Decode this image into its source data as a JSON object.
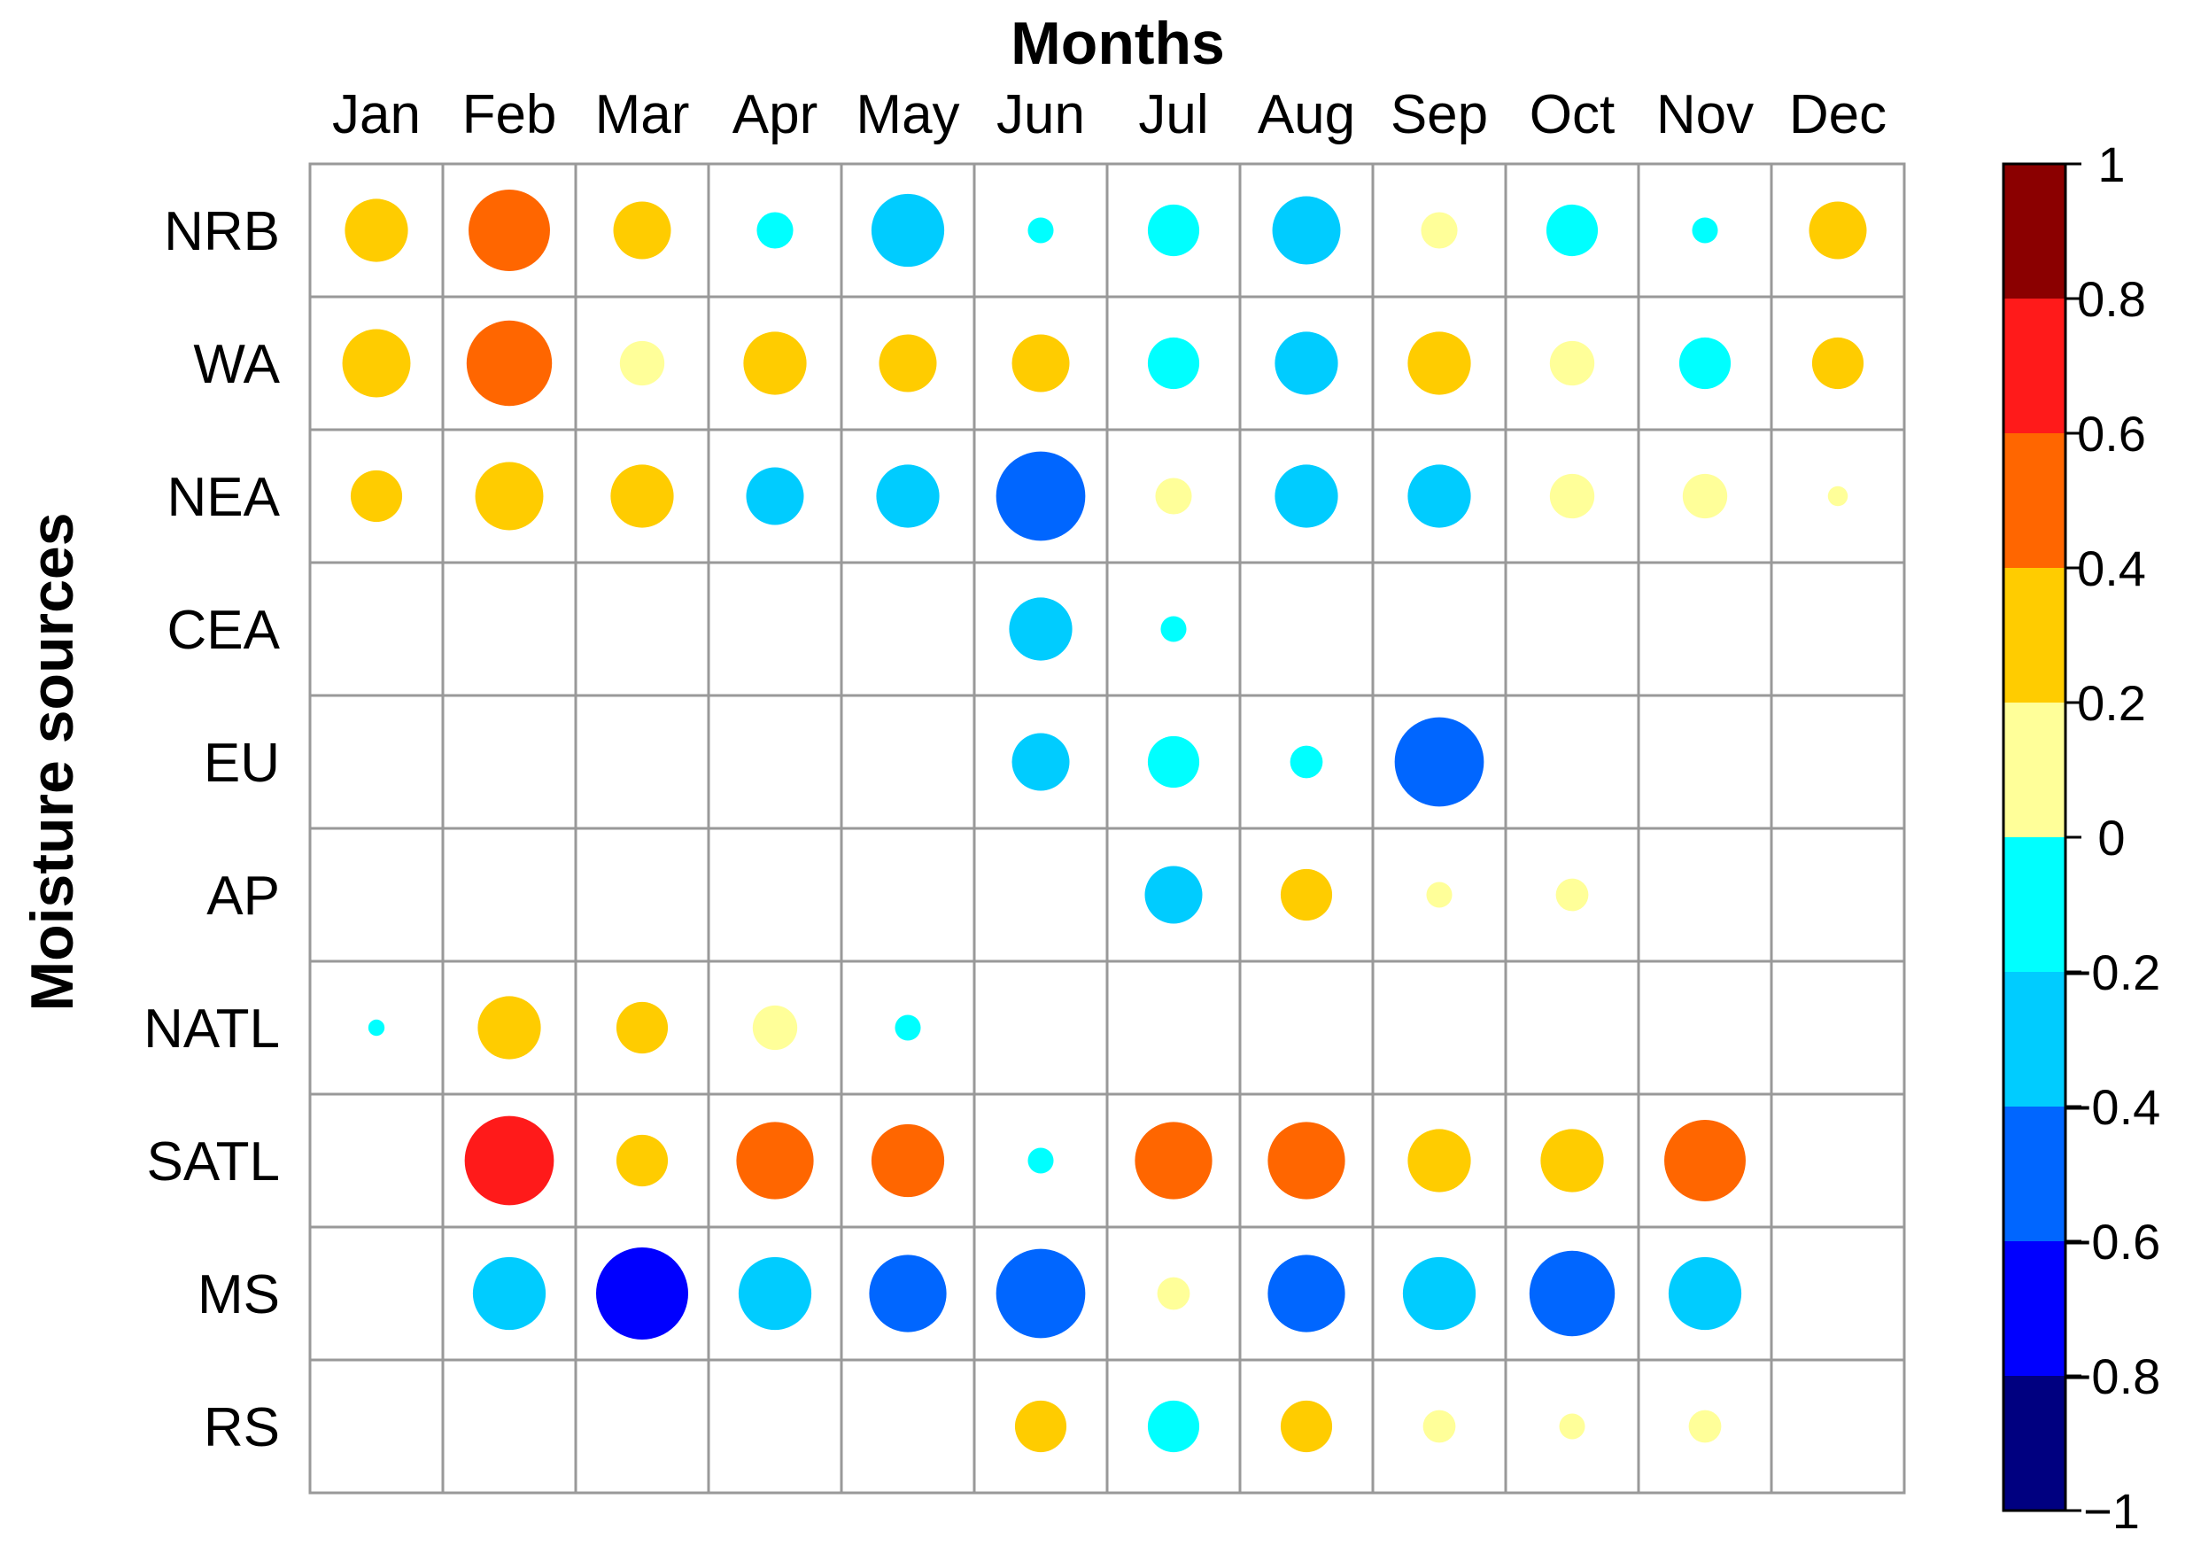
{
  "chart_data": {
    "type": "heatmap",
    "title": "Months",
    "ylabel": "Moisture sources",
    "x_categories": [
      "Jan",
      "Feb",
      "Mar",
      "Apr",
      "May",
      "Jun",
      "Jul",
      "Aug",
      "Sep",
      "Oct",
      "Nov",
      "Dec"
    ],
    "y_categories": [
      "NRB",
      "WA",
      "NEA",
      "CEA",
      "EU",
      "AP",
      "NATL",
      "SATL",
      "MS",
      "RS"
    ],
    "value_range": [
      -1,
      1
    ],
    "encoding": "correlation value shown by circle color and circle size (absolute value); empty cells have no data",
    "values": [
      [
        0.3,
        0.5,
        0.25,
        -0.1,
        -0.4,
        -0.05,
        -0.2,
        -0.35,
        0.1,
        -0.2,
        -0.05,
        0.25
      ],
      [
        0.35,
        0.55,
        0.15,
        0.3,
        0.25,
        0.25,
        -0.2,
        -0.3,
        0.3,
        0.15,
        -0.2,
        0.2
      ],
      [
        0.2,
        0.35,
        0.3,
        -0.25,
        -0.3,
        -0.6,
        0.1,
        -0.3,
        -0.3,
        0.15,
        0.15,
        0.03
      ],
      [
        null,
        null,
        null,
        null,
        null,
        -0.3,
        -0.05,
        null,
        null,
        null,
        null,
        null
      ],
      [
        null,
        null,
        null,
        null,
        null,
        -0.25,
        -0.2,
        -0.08,
        -0.6,
        null,
        null,
        null
      ],
      [
        null,
        null,
        null,
        null,
        null,
        null,
        -0.25,
        0.2,
        0.05,
        0.08,
        null,
        null
      ],
      [
        -0.02,
        0.3,
        0.2,
        0.15,
        -0.05,
        null,
        null,
        null,
        null,
        null,
        null,
        null
      ],
      [
        null,
        0.6,
        0.2,
        0.45,
        0.4,
        -0.05,
        0.45,
        0.45,
        0.3,
        0.3,
        0.5,
        null
      ],
      [
        null,
        -0.4,
        -0.65,
        -0.4,
        -0.45,
        -0.6,
        0.08,
        -0.45,
        -0.4,
        -0.55,
        -0.4,
        null
      ],
      [
        null,
        null,
        null,
        null,
        null,
        0.2,
        -0.2,
        0.2,
        0.08,
        0.05,
        0.08,
        null
      ]
    ],
    "colorbar": {
      "ticks": [
        "1",
        "0.8",
        "0.6",
        "0.4",
        "0.2",
        "0",
        "−0.2",
        "−0.4",
        "−0.6",
        "−0.8",
        "−1"
      ],
      "bins": [
        {
          "min": 0.8,
          "max": 1.0,
          "color": "#8b0000"
        },
        {
          "min": 0.6,
          "max": 0.8,
          "color": "#ff1a1a"
        },
        {
          "min": 0.4,
          "max": 0.6,
          "color": "#ff6600"
        },
        {
          "min": 0.2,
          "max": 0.4,
          "color": "#ffcc00"
        },
        {
          "min": 0.0,
          "max": 0.2,
          "color": "#ffff99"
        },
        {
          "min": -0.2,
          "max": 0.0,
          "color": "#00ffff"
        },
        {
          "min": -0.4,
          "max": -0.2,
          "color": "#00ccff"
        },
        {
          "min": -0.6,
          "max": -0.4,
          "color": "#0066ff"
        },
        {
          "min": -0.8,
          "max": -0.6,
          "color": "#0000ff"
        },
        {
          "min": -1.0,
          "max": -0.8,
          "color": "#000080"
        }
      ]
    },
    "grid": true
  }
}
